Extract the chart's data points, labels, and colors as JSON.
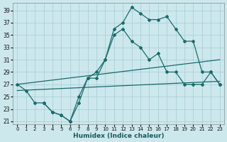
{
  "xlabel": "Humidex (Indice chaleur)",
  "bg_color": "#cce8ed",
  "grid_color": "#aacfd8",
  "line_color": "#1a6b6b",
  "xlim": [
    -0.5,
    23.5
  ],
  "ylim": [
    20.5,
    40.2
  ],
  "xticks": [
    0,
    1,
    2,
    3,
    4,
    5,
    6,
    7,
    8,
    9,
    10,
    11,
    12,
    13,
    14,
    15,
    16,
    17,
    18,
    19,
    20,
    21,
    22,
    23
  ],
  "yticks": [
    21,
    23,
    25,
    27,
    29,
    31,
    33,
    35,
    37,
    39
  ],
  "series": [
    {
      "x": [
        0,
        1,
        2,
        3,
        4,
        5,
        6,
        7,
        8,
        9,
        10,
        11,
        12,
        13,
        14,
        15,
        16,
        17,
        18,
        19,
        20,
        21,
        22,
        23
      ],
      "y": [
        27,
        26,
        24,
        24,
        22.5,
        22,
        21,
        25,
        28,
        29,
        31,
        36,
        37,
        39.5,
        38.5,
        37.5,
        37.5,
        38,
        36,
        34,
        34,
        29,
        29,
        27
      ],
      "markers": true
    },
    {
      "x": [
        3,
        4,
        5,
        6,
        7,
        8,
        9,
        10,
        11,
        12,
        13,
        14,
        15,
        16,
        17,
        18,
        19,
        20,
        21,
        22,
        23
      ],
      "y": [
        24,
        22.5,
        22,
        21,
        24,
        28,
        28,
        31,
        35,
        36,
        34,
        33,
        31,
        32,
        29,
        29,
        27,
        27,
        27,
        29,
        27
      ],
      "markers": true
    },
    {
      "x": [
        0,
        23
      ],
      "y": [
        27,
        31
      ],
      "markers": false
    },
    {
      "x": [
        0,
        23
      ],
      "y": [
        26,
        27.5
      ],
      "markers": false
    }
  ]
}
